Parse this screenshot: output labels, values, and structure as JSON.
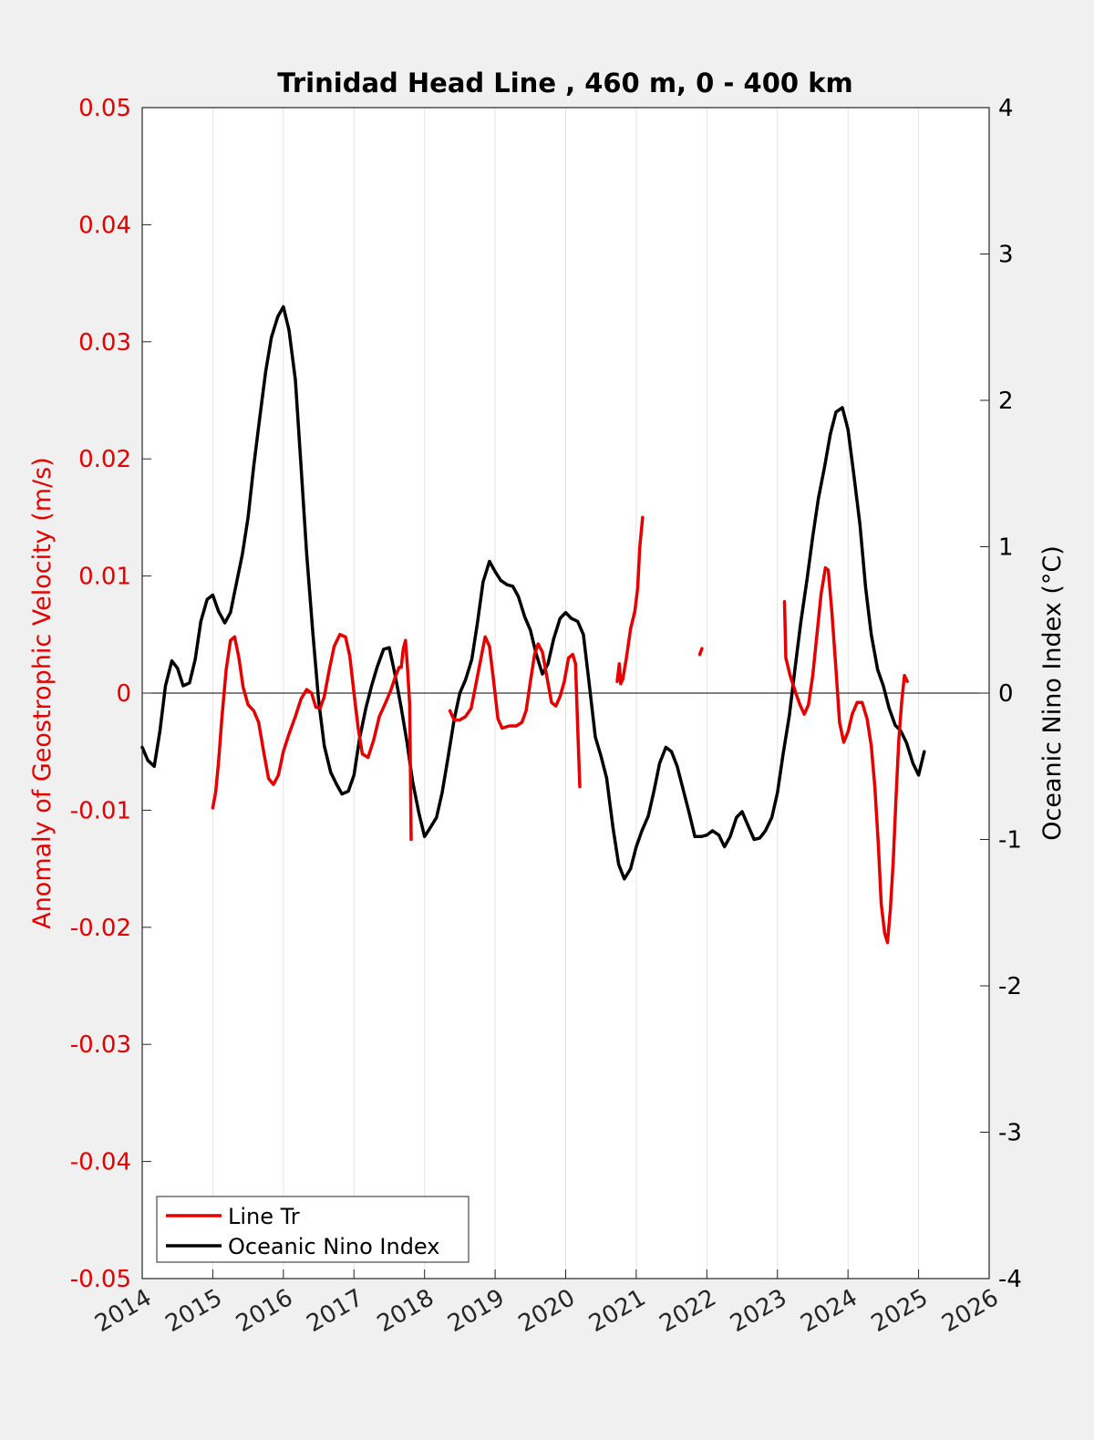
{
  "chart_data": {
    "type": "line",
    "title": "Trinidad Head Line , 460 m, 0 - 400 km",
    "xlabel": "",
    "ylabel_left": "Anomaly of Geostrophic Velocity (m/s)",
    "ylabel_right": "Oceanic Nino Index (°C)",
    "xlim": [
      2014,
      2026
    ],
    "ylim_left": [
      -0.05,
      0.05
    ],
    "ylim_right": [
      -4,
      4
    ],
    "x_ticks": [
      "2014",
      "2015",
      "2016",
      "2017",
      "2018",
      "2019",
      "2020",
      "2021",
      "2022",
      "2023",
      "2024",
      "2025",
      "2026"
    ],
    "y_ticks_left": [
      "0.05",
      "0.04",
      "0.03",
      "0.02",
      "0.01",
      "0",
      "-0.01",
      "-0.02",
      "-0.03",
      "-0.04",
      "-0.05"
    ],
    "y_ticks_right": [
      "4",
      "3",
      "2",
      "1",
      "0",
      "-1",
      "-2",
      "-3",
      "-4"
    ],
    "grid": "vertical",
    "zero_line": true,
    "legend_position": "bottom-left",
    "colors": {
      "line_tr": "#e60000",
      "oni": "#000000",
      "left_axis": "#e60000",
      "right_axis": "#000000"
    },
    "series": [
      {
        "name": "Line Tr",
        "axis": "left",
        "color": "#e60000",
        "segments": [
          [
            [
              2015.0,
              -0.0098
            ],
            [
              2015.04,
              -0.0085
            ],
            [
              2015.08,
              -0.006
            ],
            [
              2015.13,
              -0.002
            ],
            [
              2015.19,
              0.002
            ],
            [
              2015.25,
              0.0045
            ],
            [
              2015.31,
              0.0048
            ],
            [
              2015.37,
              0.003
            ],
            [
              2015.43,
              0.0005
            ],
            [
              2015.5,
              -0.001
            ],
            [
              2015.58,
              -0.0015
            ],
            [
              2015.65,
              -0.0025
            ],
            [
              2015.72,
              -0.005
            ],
            [
              2015.79,
              -0.0073
            ],
            [
              2015.86,
              -0.0078
            ],
            [
              2015.93,
              -0.007
            ],
            [
              2016.0,
              -0.005
            ],
            [
              2016.08,
              -0.0035
            ],
            [
              2016.17,
              -0.002
            ],
            [
              2016.25,
              -0.0005
            ],
            [
              2016.33,
              0.0003
            ],
            [
              2016.4,
              0.0
            ],
            [
              2016.46,
              -0.0012
            ],
            [
              2016.52,
              -0.0013
            ],
            [
              2016.58,
              -0.0003
            ],
            [
              2016.65,
              0.002
            ],
            [
              2016.72,
              0.004
            ],
            [
              2016.8,
              0.005
            ],
            [
              2016.88,
              0.0048
            ],
            [
              2016.94,
              0.0032
            ],
            [
              2017.0,
              0.0
            ],
            [
              2017.06,
              -0.003
            ],
            [
              2017.12,
              -0.0052
            ],
            [
              2017.2,
              -0.0055
            ],
            [
              2017.28,
              -0.004
            ],
            [
              2017.36,
              -0.002
            ],
            [
              2017.45,
              -0.0008
            ],
            [
              2017.52,
              0.0002
            ],
            [
              2017.58,
              0.0013
            ],
            [
              2017.64,
              0.0022
            ],
            [
              2017.67,
              0.0022
            ],
            [
              2017.7,
              0.0038
            ],
            [
              2017.73,
              0.0045
            ],
            [
              2017.76,
              0.002
            ],
            [
              2017.79,
              -0.001
            ],
            [
              2017.81,
              -0.0125
            ]
          ],
          [
            [
              2018.36,
              -0.0015
            ],
            [
              2018.42,
              -0.0023
            ],
            [
              2018.5,
              -0.0023
            ],
            [
              2018.58,
              -0.002
            ],
            [
              2018.66,
              -0.0013
            ],
            [
              2018.72,
              0.0005
            ],
            [
              2018.8,
              0.003
            ],
            [
              2018.86,
              0.0048
            ],
            [
              2018.92,
              0.004
            ],
            [
              2018.98,
              0.001
            ],
            [
              2019.04,
              -0.0022
            ],
            [
              2019.1,
              -0.003
            ],
            [
              2019.2,
              -0.0028
            ],
            [
              2019.3,
              -0.0028
            ],
            [
              2019.38,
              -0.0025
            ],
            [
              2019.44,
              -0.0015
            ],
            [
              2019.5,
              0.001
            ],
            [
              2019.56,
              0.0033
            ],
            [
              2019.61,
              0.0042
            ],
            [
              2019.67,
              0.0035
            ],
            [
              2019.73,
              0.0015
            ],
            [
              2019.8,
              -0.0008
            ],
            [
              2019.86,
              -0.0011
            ],
            [
              2019.92,
              -0.0003
            ],
            [
              2019.98,
              0.001
            ],
            [
              2020.04,
              0.003
            ],
            [
              2020.1,
              0.0033
            ],
            [
              2020.14,
              0.0025
            ],
            [
              2020.17,
              -0.003
            ],
            [
              2020.2,
              -0.008
            ]
          ],
          [
            [
              2020.73,
              0.001
            ],
            [
              2020.76,
              0.0025
            ],
            [
              2020.78,
              0.0008
            ],
            [
              2020.81,
              0.0012
            ],
            [
              2020.86,
              0.003
            ],
            [
              2020.92,
              0.0055
            ],
            [
              2020.98,
              0.007
            ],
            [
              2021.02,
              0.009
            ],
            [
              2021.05,
              0.0125
            ],
            [
              2021.09,
              0.015
            ]
          ],
          [
            [
              2021.9,
              0.0033
            ],
            [
              2021.93,
              0.0038
            ]
          ],
          [
            [
              2023.1,
              0.0078
            ],
            [
              2023.12,
              0.003
            ],
            [
              2023.18,
              0.0015
            ],
            [
              2023.26,
              0.0
            ],
            [
              2023.32,
              -0.001
            ],
            [
              2023.38,
              -0.0018
            ],
            [
              2023.44,
              -0.001
            ],
            [
              2023.5,
              0.0015
            ],
            [
              2023.56,
              0.005
            ],
            [
              2023.62,
              0.0085
            ],
            [
              2023.68,
              0.0107
            ],
            [
              2023.72,
              0.0105
            ],
            [
              2023.77,
              0.007
            ],
            [
              2023.83,
              0.002
            ],
            [
              2023.88,
              -0.0025
            ],
            [
              2023.94,
              -0.0042
            ],
            [
              2024.0,
              -0.0033
            ],
            [
              2024.06,
              -0.0018
            ],
            [
              2024.13,
              -0.0008
            ],
            [
              2024.2,
              -0.0008
            ],
            [
              2024.27,
              -0.0022
            ],
            [
              2024.33,
              -0.0045
            ],
            [
              2024.38,
              -0.008
            ],
            [
              2024.43,
              -0.013
            ],
            [
              2024.47,
              -0.018
            ],
            [
              2024.52,
              -0.0205
            ],
            [
              2024.56,
              -0.0213
            ],
            [
              2024.6,
              -0.0185
            ],
            [
              2024.64,
              -0.0145
            ],
            [
              2024.68,
              -0.009
            ],
            [
              2024.72,
              -0.004
            ],
            [
              2024.76,
              -0.0008
            ],
            [
              2024.8,
              0.0015
            ],
            [
              2024.84,
              0.001
            ]
          ]
        ]
      },
      {
        "name": "Oceanic Nino Index",
        "axis": "right",
        "color": "#000000",
        "segments": [
          [
            [
              2014.0,
              -0.37
            ],
            [
              2014.08,
              -0.46
            ],
            [
              2014.17,
              -0.5
            ],
            [
              2014.25,
              -0.26
            ],
            [
              2014.33,
              0.05
            ],
            [
              2014.42,
              0.22
            ],
            [
              2014.5,
              0.17
            ],
            [
              2014.58,
              0.05
            ],
            [
              2014.67,
              0.07
            ],
            [
              2014.75,
              0.23
            ],
            [
              2014.83,
              0.49
            ],
            [
              2014.92,
              0.64
            ],
            [
              2015.0,
              0.67
            ],
            [
              2015.08,
              0.56
            ],
            [
              2015.17,
              0.48
            ],
            [
              2015.25,
              0.55
            ],
            [
              2015.33,
              0.74
            ],
            [
              2015.42,
              0.95
            ],
            [
              2015.5,
              1.2
            ],
            [
              2015.58,
              1.55
            ],
            [
              2015.67,
              1.9
            ],
            [
              2015.75,
              2.2
            ],
            [
              2015.83,
              2.43
            ],
            [
              2015.92,
              2.57
            ],
            [
              2016.0,
              2.64
            ],
            [
              2016.08,
              2.48
            ],
            [
              2016.17,
              2.14
            ],
            [
              2016.25,
              1.55
            ],
            [
              2016.33,
              0.95
            ],
            [
              2016.42,
              0.4
            ],
            [
              2016.5,
              -0.05
            ],
            [
              2016.58,
              -0.36
            ],
            [
              2016.67,
              -0.54
            ],
            [
              2016.75,
              -0.62
            ],
            [
              2016.83,
              -0.69
            ],
            [
              2016.92,
              -0.67
            ],
            [
              2017.0,
              -0.56
            ],
            [
              2017.08,
              -0.31
            ],
            [
              2017.17,
              -0.1
            ],
            [
              2017.25,
              0.05
            ],
            [
              2017.33,
              0.18
            ],
            [
              2017.42,
              0.3
            ],
            [
              2017.5,
              0.31
            ],
            [
              2017.58,
              0.13
            ],
            [
              2017.67,
              -0.1
            ],
            [
              2017.75,
              -0.33
            ],
            [
              2017.83,
              -0.6
            ],
            [
              2017.92,
              -0.82
            ],
            [
              2018.0,
              -0.98
            ],
            [
              2018.08,
              -0.92
            ],
            [
              2018.17,
              -0.85
            ],
            [
              2018.25,
              -0.68
            ],
            [
              2018.33,
              -0.45
            ],
            [
              2018.42,
              -0.18
            ],
            [
              2018.5,
              0.0
            ],
            [
              2018.58,
              0.09
            ],
            [
              2018.67,
              0.23
            ],
            [
              2018.75,
              0.48
            ],
            [
              2018.83,
              0.76
            ],
            [
              2018.92,
              0.9
            ],
            [
              2019.0,
              0.83
            ],
            [
              2019.08,
              0.77
            ],
            [
              2019.17,
              0.74
            ],
            [
              2019.25,
              0.73
            ],
            [
              2019.33,
              0.66
            ],
            [
              2019.42,
              0.52
            ],
            [
              2019.5,
              0.43
            ],
            [
              2019.58,
              0.27
            ],
            [
              2019.67,
              0.13
            ],
            [
              2019.75,
              0.2
            ],
            [
              2019.83,
              0.37
            ],
            [
              2019.92,
              0.51
            ],
            [
              2020.0,
              0.55
            ],
            [
              2020.08,
              0.51
            ],
            [
              2020.17,
              0.49
            ],
            [
              2020.25,
              0.4
            ],
            [
              2020.33,
              0.08
            ],
            [
              2020.42,
              -0.3
            ],
            [
              2020.5,
              -0.43
            ],
            [
              2020.58,
              -0.58
            ],
            [
              2020.67,
              -0.92
            ],
            [
              2020.75,
              -1.17
            ],
            [
              2020.83,
              -1.27
            ],
            [
              2020.92,
              -1.2
            ],
            [
              2021.0,
              -1.05
            ],
            [
              2021.08,
              -0.94
            ],
            [
              2021.17,
              -0.84
            ],
            [
              2021.25,
              -0.67
            ],
            [
              2021.33,
              -0.48
            ],
            [
              2021.42,
              -0.37
            ],
            [
              2021.5,
              -0.4
            ],
            [
              2021.58,
              -0.5
            ],
            [
              2021.67,
              -0.67
            ],
            [
              2021.75,
              -0.82
            ],
            [
              2021.83,
              -0.98
            ],
            [
              2021.92,
              -0.98
            ],
            [
              2022.0,
              -0.97
            ],
            [
              2022.08,
              -0.94
            ],
            [
              2022.17,
              -0.97
            ],
            [
              2022.25,
              -1.05
            ],
            [
              2022.33,
              -0.98
            ],
            [
              2022.42,
              -0.85
            ],
            [
              2022.5,
              -0.81
            ],
            [
              2022.58,
              -0.9
            ],
            [
              2022.67,
              -1.0
            ],
            [
              2022.75,
              -0.99
            ],
            [
              2022.83,
              -0.94
            ],
            [
              2022.92,
              -0.85
            ],
            [
              2023.0,
              -0.68
            ],
            [
              2023.08,
              -0.42
            ],
            [
              2023.17,
              -0.15
            ],
            [
              2023.25,
              0.17
            ],
            [
              2023.33,
              0.48
            ],
            [
              2023.42,
              0.78
            ],
            [
              2023.5,
              1.07
            ],
            [
              2023.58,
              1.33
            ],
            [
              2023.67,
              1.55
            ],
            [
              2023.75,
              1.77
            ],
            [
              2023.83,
              1.92
            ],
            [
              2023.92,
              1.95
            ],
            [
              2024.0,
              1.8
            ],
            [
              2024.08,
              1.5
            ],
            [
              2024.17,
              1.15
            ],
            [
              2024.25,
              0.72
            ],
            [
              2024.33,
              0.4
            ],
            [
              2024.42,
              0.16
            ],
            [
              2024.5,
              0.05
            ],
            [
              2024.58,
              -0.1
            ],
            [
              2024.67,
              -0.22
            ],
            [
              2024.75,
              -0.26
            ],
            [
              2024.83,
              -0.34
            ],
            [
              2024.92,
              -0.48
            ],
            [
              2025.0,
              -0.56
            ],
            [
              2025.08,
              -0.4
            ]
          ]
        ]
      }
    ]
  }
}
